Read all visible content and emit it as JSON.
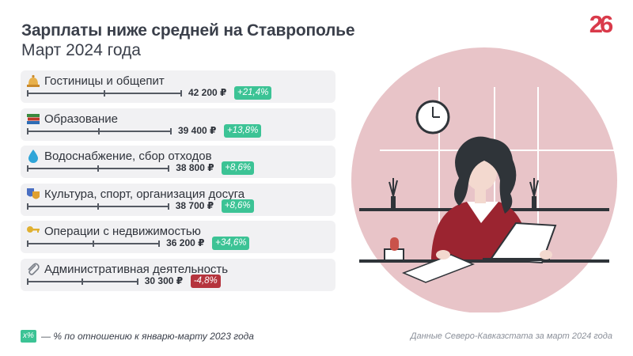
{
  "header": {
    "title": "Зарплаты ниже средней на Ставрополье",
    "subtitle": "Март 2024 года",
    "logo_text": "26"
  },
  "chart_data": {
    "type": "bar",
    "title": "Зарплаты ниже средней на Ставрополье",
    "subtitle": "Март 2024 года",
    "unit": "₽",
    "categories": [
      "Гостиницы и общепит",
      "Образование",
      "Водоснабжение, сбор отходов",
      "Культура, спорт, организация досуга",
      "Операции с недвижимостью",
      "Административная деятельность"
    ],
    "values": [
      42200,
      39400,
      38800,
      38700,
      36200,
      30300
    ],
    "value_labels": [
      "42 200 ₽",
      "39 400 ₽",
      "38 800 ₽",
      "38 700 ₽",
      "36 200 ₽",
      "30 300 ₽"
    ],
    "changes": [
      "+21,4%",
      "+13,8%",
      "+8,6%",
      "+8,6%",
      "+34,6%",
      "-4,8%"
    ],
    "change_sign": [
      "pos",
      "pos",
      "pos",
      "pos",
      "pos",
      "neg"
    ],
    "icons": [
      "bell-icon",
      "books-icon",
      "droplet-icon",
      "theater-masks-icon",
      "key-icon",
      "paperclip-icon"
    ]
  },
  "legend": {
    "chip": "x%",
    "text": "— % по отношению к январю-марту 2023 года"
  },
  "source": "Данные Северо-Кавказстата за март 2024 года",
  "colors": {
    "positive": "#3cc395",
    "negative": "#b5343d",
    "logo": "#d93a4a",
    "circle": "#e8c4c8"
  }
}
